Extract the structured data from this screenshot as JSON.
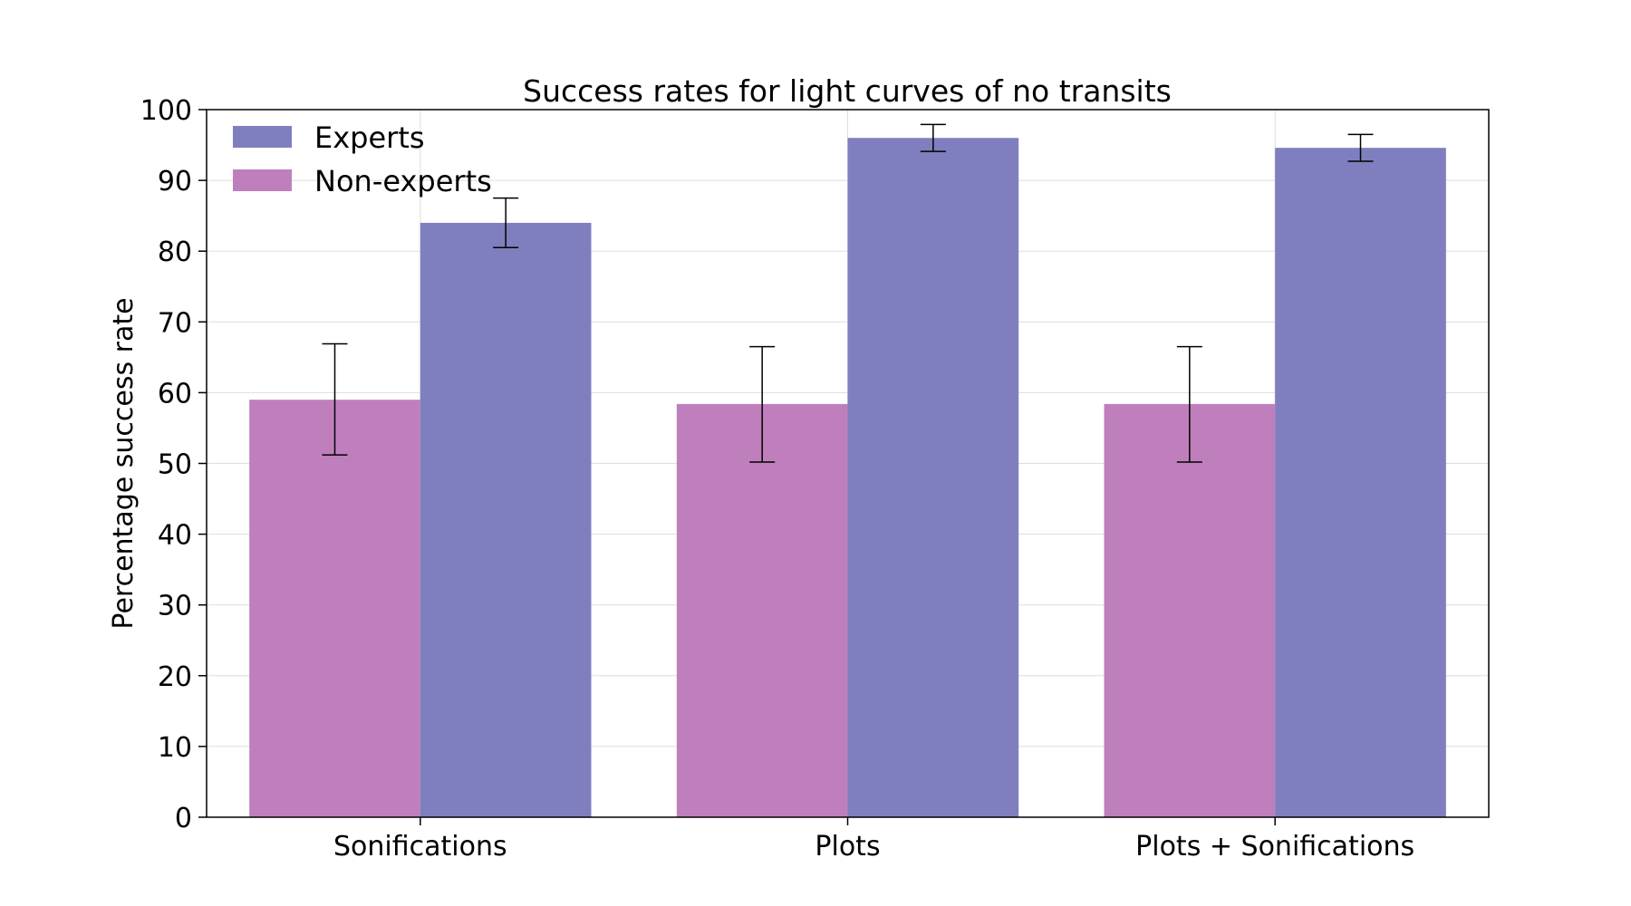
{
  "chart_data": {
    "type": "bar",
    "title": "Success rates for light curves of no transits",
    "xlabel": "",
    "ylabel": "Percentage success rate",
    "categories": [
      "Sonifications",
      "Plots",
      "Plots + Sonifications"
    ],
    "ylim": [
      0,
      100
    ],
    "yticks": [
      0,
      10,
      20,
      30,
      40,
      50,
      60,
      70,
      80,
      90,
      100
    ],
    "grid": true,
    "legend_position": "top-left",
    "series": [
      {
        "name": "Non-experts",
        "color": "#bf7fbd",
        "values": [
          59.0,
          58.4,
          58.4
        ],
        "error_low": [
          51.2,
          50.2,
          50.2
        ],
        "error_high": [
          66.9,
          66.5,
          66.5
        ]
      },
      {
        "name": "Experts",
        "color": "#7f7fbf",
        "values": [
          84.0,
          96.0,
          94.6
        ],
        "error_low": [
          80.5,
          94.1,
          92.7
        ],
        "error_high": [
          87.5,
          97.9,
          96.5
        ]
      }
    ],
    "legend_order": [
      "Experts",
      "Non-experts"
    ]
  }
}
